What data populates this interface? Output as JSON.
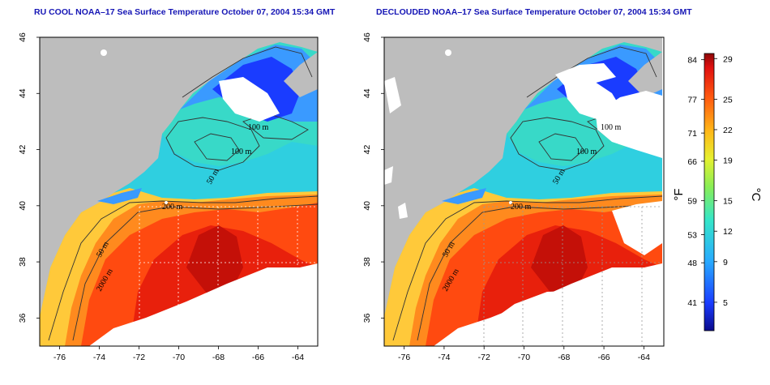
{
  "panels": [
    {
      "title": "RU COOL NOAA–17 Sea Surface Temperature October 07, 2004 15:34 GMT",
      "variant": "cool"
    },
    {
      "title": "DECLOUDED NOAA–17 Sea Surface Temperature October 07, 2004 15:34 GMT",
      "variant": "declouded"
    }
  ],
  "axes": {
    "lon_ticks": [
      "-76",
      "-74",
      "-72",
      "-70",
      "-68",
      "-66",
      "-64"
    ],
    "lat_ticks": [
      "46",
      "44",
      "42",
      "40",
      "38",
      "36"
    ]
  },
  "contour_labels": {
    "m100a": "100 m",
    "m100b": "100 m",
    "m50a": "50 m",
    "m200": "200 m",
    "m50b": "50 m",
    "m2000": "2000 m"
  },
  "colorbar": {
    "fahrenheit_ticks": [
      "84",
      "77",
      "71",
      "66",
      "59",
      "53",
      "48",
      "41"
    ],
    "celsius_ticks": [
      "29",
      "25",
      "22",
      "19",
      "15",
      "12",
      "9",
      "5"
    ],
    "fahrenheit_unit": "°F",
    "celsius_unit": "°C"
  },
  "colors": {
    "land": "#bdbdbd",
    "cloud": "#ffffff",
    "title": "#1515b5"
  }
}
